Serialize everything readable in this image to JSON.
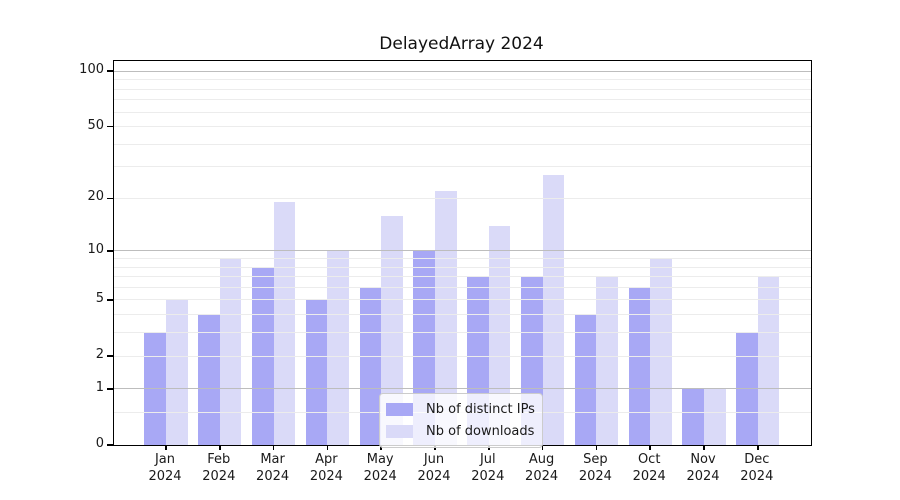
{
  "figure": {
    "title": "DelayedArray 2024"
  },
  "chart_data": {
    "type": "bar",
    "title": "DelayedArray 2024",
    "categories": [
      "Jan",
      "Feb",
      "Mar",
      "Apr",
      "May",
      "Jun",
      "Jul",
      "Aug",
      "Sep",
      "Oct",
      "Nov",
      "Dec"
    ],
    "category_sublabel": "2024",
    "series": [
      {
        "name": "Nb of distinct IPs",
        "color": "#a8a8f5",
        "values": [
          3,
          4,
          8,
          5,
          6,
          10,
          7,
          7,
          4,
          6,
          1,
          3
        ]
      },
      {
        "name": "Nb of downloads",
        "color": "#dadaf8",
        "values": [
          5,
          9,
          19,
          10,
          16,
          22,
          14,
          27,
          7,
          9,
          1,
          7
        ]
      }
    ],
    "xlabel": "",
    "ylabel": "",
    "y_scale": "log10(1+x)",
    "y_ticks": [
      0,
      1,
      2,
      5,
      10,
      20,
      50,
      100
    ],
    "y_max": 113.5,
    "major_gridlines": [
      1,
      10,
      100
    ],
    "minor_gridlines": [
      0.5,
      2,
      3,
      4,
      5,
      6,
      7,
      8,
      9,
      20,
      30,
      40,
      50,
      60,
      70,
      80,
      90
    ],
    "grid": true,
    "legend_position": "inside-bottom-center"
  },
  "colors": {
    "bar_distinct_ips": "#a8a8f5",
    "bar_downloads": "#dadaf8",
    "grid_major": "#bdbdbd",
    "grid_minor": "#ececec",
    "spine": "#000000",
    "text": "#1a1a1a",
    "legend_border": "#cccccc",
    "legend_background": "rgba(255,255,255,0.8)"
  }
}
